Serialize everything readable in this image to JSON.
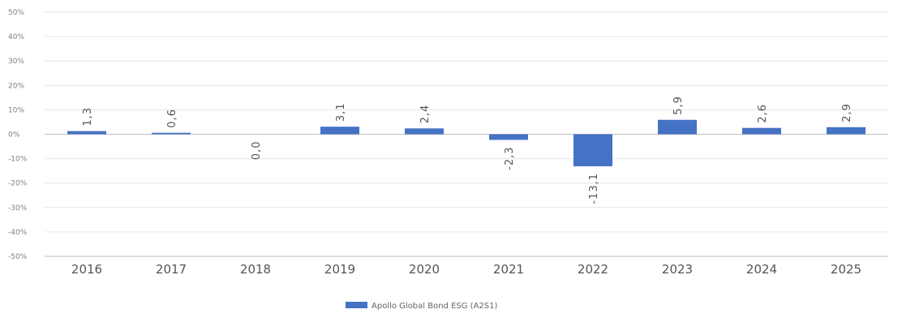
{
  "chart_data": {
    "type": "bar",
    "categories": [
      "2016",
      "2017",
      "2018",
      "2019",
      "2020",
      "2021",
      "2022",
      "2023",
      "2024",
      "2025"
    ],
    "series": [
      {
        "name": "Apollo Global Bond ESG (A2S1)",
        "values": [
          1.3,
          0.6,
          0.0,
          3.1,
          2.4,
          -2.3,
          -13.1,
          5.9,
          2.6,
          2.9
        ],
        "labels": [
          "1,3",
          "0,6",
          "0,0",
          "3,1",
          "2,4",
          "-2,3",
          "-13,1",
          "5,9",
          "2,6",
          "2,9"
        ],
        "color": "#4472c4"
      }
    ],
    "y_ticks": [
      50,
      40,
      30,
      20,
      10,
      0,
      -10,
      -20,
      -30,
      -40,
      -50
    ],
    "y_tick_labels": [
      "50%",
      "40%",
      "30%",
      "20%",
      "10%",
      "0%",
      "-10%",
      "-20%",
      "-30%",
      "-40%",
      "-50%"
    ],
    "ylim": [
      -50,
      50
    ],
    "grid": true,
    "legend_position": "bottom-center",
    "colors": {
      "grid": "#e6e6e6",
      "axis": "#bfbfbf"
    }
  }
}
